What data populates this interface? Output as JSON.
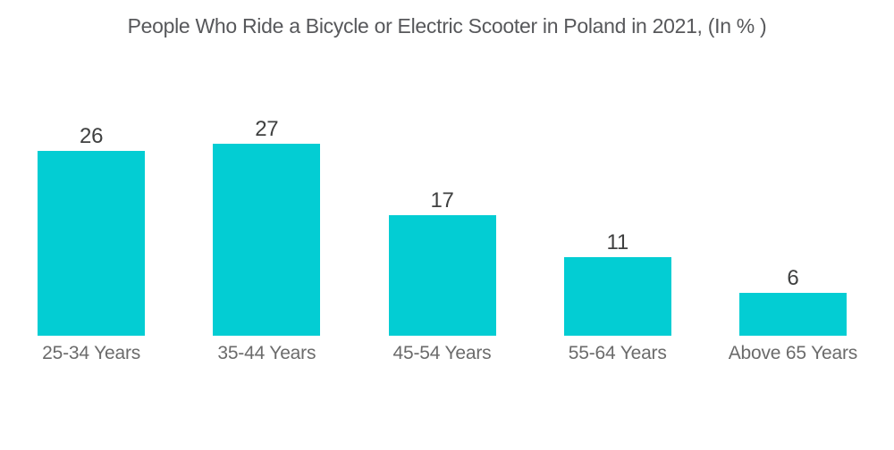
{
  "page": {
    "background": "#ffffff"
  },
  "chart_data": {
    "type": "bar",
    "title": "People Who Ride a Bicycle or Electric Scooter in Poland in 2021, (In % )",
    "categories": [
      "25-34 Years",
      "35-44 Years",
      "45-54 Years",
      "55-64 Years",
      "Above 65 Years"
    ],
    "values": [
      26,
      27,
      17,
      11,
      6
    ],
    "xlabel": "",
    "ylabel": "",
    "ylim": [
      0,
      27
    ],
    "grid": false,
    "legend": false,
    "value_labels_position": "above-bars",
    "colors": {
      "bar": "#03CDD3",
      "title": "#57585B",
      "value_label": "#3F4040",
      "category_label": "#6B6B6B"
    }
  }
}
